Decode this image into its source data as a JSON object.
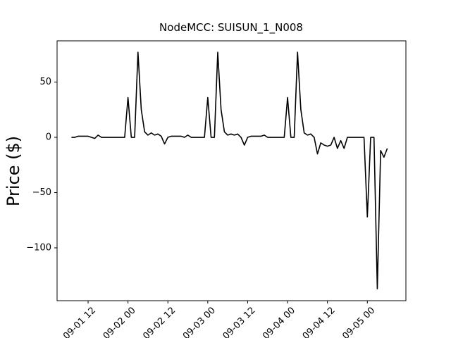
{
  "chart_data": {
    "type": "line",
    "title": "NodeMCC: SUISUN_1_N008",
    "y_label": "Price ($)",
    "x": [
      7,
      8,
      9,
      10,
      11,
      12,
      13,
      14,
      15,
      16,
      17,
      18,
      19,
      20,
      21,
      22,
      23,
      24,
      25,
      26,
      27,
      28,
      29,
      30,
      31,
      32,
      33,
      34,
      35,
      36,
      37,
      38,
      39,
      40,
      41,
      42,
      43,
      44,
      45,
      46,
      47,
      48,
      49,
      50,
      51,
      52,
      53,
      54,
      55,
      56,
      57,
      58,
      59,
      60,
      61,
      62,
      63,
      64,
      65,
      66,
      67,
      68,
      69,
      70,
      71,
      72,
      73,
      74,
      75,
      76,
      77,
      78,
      79,
      80,
      81,
      82,
      83,
      84,
      85,
      86,
      87,
      88,
      89,
      90,
      91,
      92,
      93,
      94,
      95,
      96,
      97,
      98,
      99,
      100,
      101,
      102
    ],
    "series": [
      {
        "name": "price",
        "color": "#000000",
        "values": [
          0,
          0,
          1,
          1,
          1,
          1,
          0,
          -1,
          2,
          0,
          0,
          0,
          0,
          0,
          0,
          0,
          0,
          36,
          0,
          0,
          77,
          25,
          5,
          2,
          4,
          2,
          3,
          1,
          -6,
          0,
          1,
          1,
          1,
          1,
          0,
          2,
          0,
          0,
          0,
          0,
          0,
          36,
          0,
          0,
          77,
          25,
          5,
          2,
          3,
          2,
          3,
          0,
          -7,
          0,
          1,
          1,
          1,
          1,
          2,
          0,
          0,
          0,
          0,
          0,
          0,
          36,
          0,
          0,
          77,
          25,
          4,
          2,
          3,
          0,
          -15,
          -5,
          -7,
          -8,
          -7,
          0,
          -10,
          -3,
          -10,
          0,
          0,
          0,
          0,
          0,
          0,
          -72,
          0,
          0,
          -137,
          -12,
          -18,
          -10
        ]
      }
    ],
    "xlim": [
      2.67,
      107.6
    ],
    "ylim": [
      87.3,
      -147.8
    ],
    "xticks": [
      {
        "value": 12,
        "label": "09-01 12"
      },
      {
        "value": 24,
        "label": "09-02 00"
      },
      {
        "value": 36,
        "label": "09-02 12"
      },
      {
        "value": 48,
        "label": "09-03 00"
      },
      {
        "value": 60,
        "label": "09-03 12"
      },
      {
        "value": 72,
        "label": "09-04 00"
      },
      {
        "value": 84,
        "label": "09-04 12"
      },
      {
        "value": 96,
        "label": "09-05 00"
      }
    ],
    "yticks": [
      {
        "value": -100,
        "label": "−100"
      },
      {
        "value": -50,
        "label": "−50"
      },
      0,
      50
    ]
  }
}
